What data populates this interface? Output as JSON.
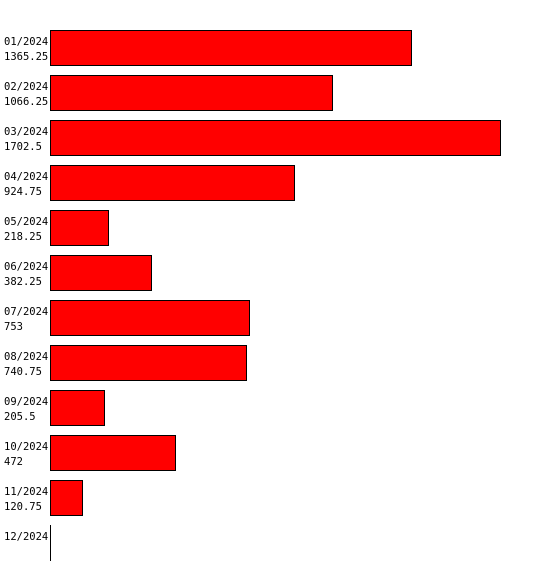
{
  "chart_data": {
    "type": "bar",
    "orientation": "horizontal",
    "categories": [
      "01/2024",
      "02/2024",
      "03/2024",
      "04/2024",
      "05/2024",
      "06/2024",
      "07/2024",
      "08/2024",
      "09/2024",
      "10/2024",
      "11/2024",
      "12/2024"
    ],
    "values": [
      1365.25,
      1066.25,
      1702.5,
      924.75,
      218.25,
      382.25,
      753,
      740.75,
      205.5,
      472,
      120.75,
      0
    ],
    "value_labels": [
      "1365.25",
      "1066.25",
      "1702.5",
      "924.75",
      "218.25",
      "382.25",
      "753",
      "740.75",
      "205.5",
      "472",
      "120.75",
      ""
    ],
    "title": "",
    "xlabel": "",
    "ylabel": "",
    "xlim": [
      0,
      1702.5
    ],
    "grid": false,
    "legend": "none",
    "colors": {
      "bar_fill": "#ff0000",
      "bar_stroke": "#000000",
      "axis": "#000000",
      "text": "#000000"
    }
  }
}
